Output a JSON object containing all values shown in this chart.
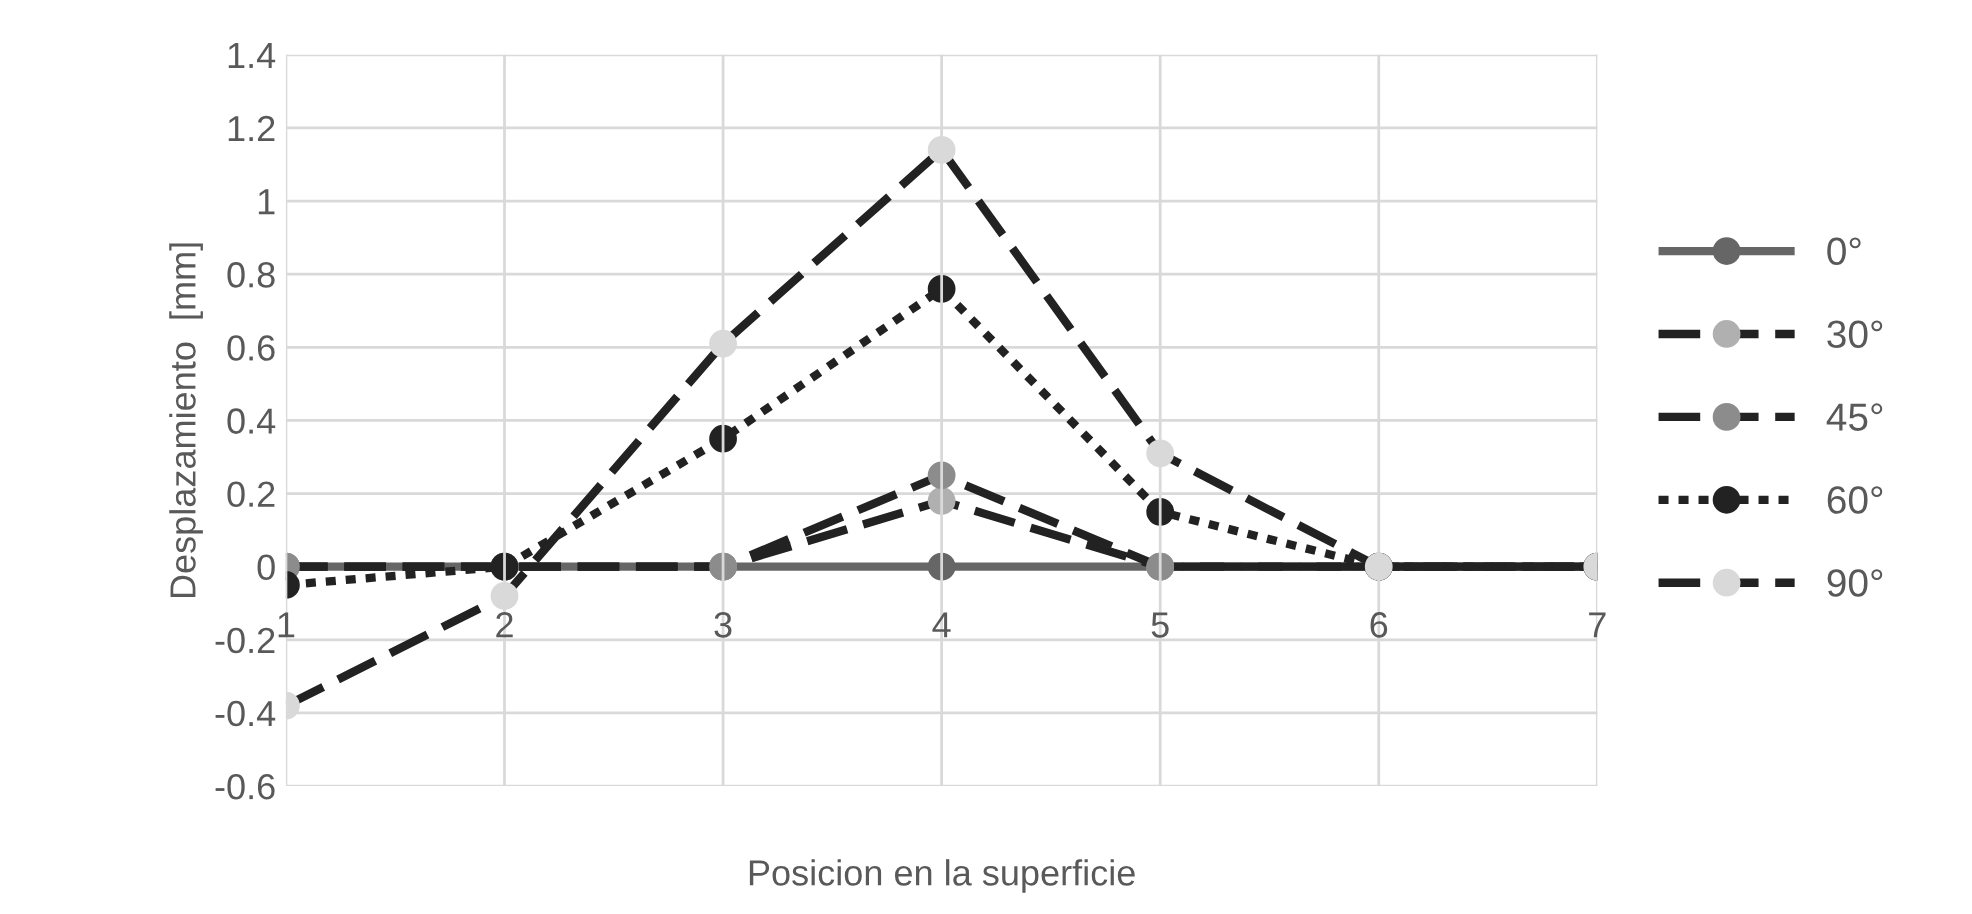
{
  "chart_data": {
    "type": "line",
    "xlabel": "Posicion en la superficie",
    "ylabel": "Desplazamiento  [mm]",
    "categories": [
      "1",
      "2",
      "3",
      "4",
      "5",
      "6",
      "7"
    ],
    "series": [
      {
        "name": "0°",
        "color": "#666666",
        "line_style": "solid",
        "values": [
          0,
          0,
          0,
          0,
          0,
          0,
          0
        ]
      },
      {
        "name": "30°",
        "color": "#b0b0b0",
        "line_style": "dashed",
        "values": [
          0,
          0,
          0,
          0.18,
          0,
          0,
          0
        ]
      },
      {
        "name": "45°",
        "color": "#8c8c8c",
        "line_style": "dashed",
        "values": [
          0,
          0,
          0,
          0.25,
          0,
          0,
          0
        ]
      },
      {
        "name": "60°",
        "color": "#222222",
        "line_style": "dotted",
        "values": [
          -0.05,
          0,
          0.35,
          0.76,
          0.15,
          0,
          0
        ]
      },
      {
        "name": "90°",
        "color": "#d9d9d9",
        "line_style": "dashed",
        "values": [
          -0.38,
          -0.08,
          0.61,
          1.14,
          0.31,
          0,
          0
        ]
      }
    ],
    "ylim": [
      -0.6,
      1.4
    ],
    "yticks": [
      -0.6,
      -0.4,
      -0.2,
      0,
      0.2,
      0.4,
      0.6,
      0.8,
      1,
      1.2,
      1.4
    ],
    "grid": true,
    "legend": "right",
    "marker": "circle"
  }
}
